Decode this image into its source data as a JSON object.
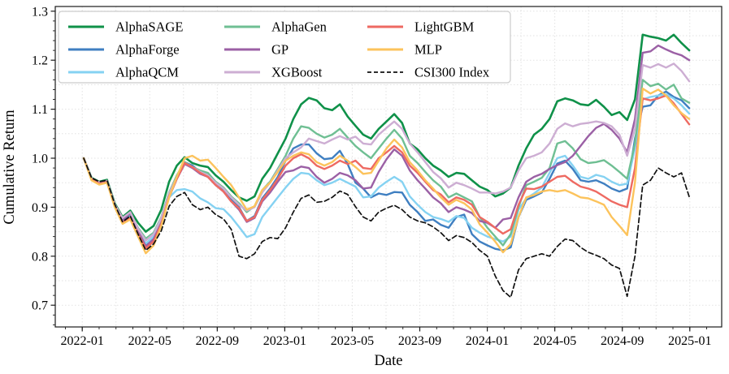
{
  "figure": {
    "xlabel": "Date",
    "ylabel": "Cumulative Return",
    "background_color": "#ffffff",
    "grid_color": "#e2e2e2",
    "spine_color": "#1a1a1a"
  },
  "chart_data": {
    "type": "line",
    "title": "",
    "xlabel": "Date",
    "ylabel": "Cumulative Return",
    "grid": true,
    "legend_position": "upper left",
    "ylim": [
      0.656,
      1.31
    ],
    "y_ticks": [
      0.7,
      0.8,
      0.9,
      1.0,
      1.1,
      1.2,
      1.3
    ],
    "y_tick_labels": [
      "0.7",
      "0.8",
      "0.9",
      "1.0",
      "1.1",
      "1.2",
      "1.3"
    ],
    "y_minor_step": 0.02,
    "x_ticks": [
      {
        "label": "2022-01",
        "month": 0
      },
      {
        "label": "2022-05",
        "month": 4
      },
      {
        "label": "2022-09",
        "month": 8
      },
      {
        "label": "2023-01",
        "month": 12
      },
      {
        "label": "2023-05",
        "month": 16
      },
      {
        "label": "2023-09",
        "month": 20
      },
      {
        "label": "2024-01",
        "month": 24
      },
      {
        "label": "2024-05",
        "month": 28
      },
      {
        "label": "2024-09",
        "month": 32
      },
      {
        "label": "2025-01",
        "month": 36
      }
    ],
    "dates": [
      "2022-01-04",
      "2022-01-18",
      "2022-02-01",
      "2022-02-15",
      "2022-03-01",
      "2022-03-15",
      "2022-03-29",
      "2022-04-12",
      "2022-04-26",
      "2022-05-10",
      "2022-05-24",
      "2022-06-07",
      "2022-06-21",
      "2022-07-05",
      "2022-07-19",
      "2022-08-02",
      "2022-08-16",
      "2022-08-30",
      "2022-09-13",
      "2022-09-27",
      "2022-10-11",
      "2022-10-25",
      "2022-11-08",
      "2022-11-22",
      "2022-12-06",
      "2022-12-20",
      "2023-01-03",
      "2023-01-17",
      "2023-01-31",
      "2023-02-14",
      "2023-02-28",
      "2023-03-14",
      "2023-03-28",
      "2023-04-11",
      "2023-04-25",
      "2023-05-09",
      "2023-05-23",
      "2023-06-06",
      "2023-06-20",
      "2023-07-04",
      "2023-07-18",
      "2023-08-01",
      "2023-08-15",
      "2023-08-29",
      "2023-09-12",
      "2023-09-26",
      "2023-10-10",
      "2023-10-24",
      "2023-11-07",
      "2023-11-21",
      "2023-12-05",
      "2023-12-19",
      "2024-01-02",
      "2024-01-16",
      "2024-01-30",
      "2024-02-13",
      "2024-02-27",
      "2024-03-12",
      "2024-03-26",
      "2024-04-09",
      "2024-04-23",
      "2024-05-07",
      "2024-05-21",
      "2024-06-04",
      "2024-06-18",
      "2024-07-02",
      "2024-07-16",
      "2024-07-30",
      "2024-08-13",
      "2024-08-27",
      "2024-09-10",
      "2024-09-24",
      "2024-10-08",
      "2024-10-22",
      "2024-11-05",
      "2024-11-19",
      "2024-12-03",
      "2024-12-17",
      "2024-12-31"
    ],
    "series": [
      {
        "name": "AlphaSAGE",
        "color": "#0f9149",
        "dash": null,
        "width": 2.6,
        "values": [
          1.0,
          0.96,
          0.952,
          0.956,
          0.908,
          0.88,
          0.893,
          0.868,
          0.85,
          0.862,
          0.895,
          0.952,
          0.985,
          1.002,
          0.99,
          0.985,
          0.982,
          0.965,
          0.952,
          0.935,
          0.92,
          0.913,
          0.922,
          0.958,
          0.98,
          1.01,
          1.04,
          1.08,
          1.11,
          1.123,
          1.118,
          1.102,
          1.098,
          1.11,
          1.085,
          1.066,
          1.048,
          1.04,
          1.06,
          1.075,
          1.09,
          1.072,
          1.03,
          1.018,
          1.0,
          0.985,
          0.975,
          0.962,
          0.97,
          0.968,
          0.955,
          0.942,
          0.935,
          0.922,
          0.928,
          0.94,
          0.985,
          1.02,
          1.048,
          1.06,
          1.08,
          1.116,
          1.122,
          1.118,
          1.11,
          1.108,
          1.119,
          1.105,
          1.088,
          1.094,
          1.078,
          1.12,
          1.252,
          1.248,
          1.245,
          1.24,
          1.252,
          1.235,
          1.22
        ]
      },
      {
        "name": "AlphaForge",
        "color": "#3f7fc1",
        "dash": null,
        "width": 2.4,
        "values": [
          1.0,
          0.958,
          0.95,
          0.953,
          0.904,
          0.872,
          0.882,
          0.85,
          0.822,
          0.835,
          0.87,
          0.925,
          0.96,
          0.992,
          0.985,
          0.972,
          0.965,
          0.948,
          0.935,
          0.915,
          0.9,
          0.872,
          0.882,
          0.918,
          0.938,
          0.962,
          0.995,
          1.02,
          1.028,
          1.028,
          1.01,
          0.998,
          1.0,
          1.015,
          0.988,
          0.95,
          0.938,
          0.92,
          0.928,
          0.925,
          0.931,
          0.93,
          0.905,
          0.89,
          0.872,
          0.875,
          0.864,
          0.858,
          0.88,
          0.885,
          0.845,
          0.83,
          0.822,
          0.815,
          0.812,
          0.818,
          0.88,
          0.915,
          0.922,
          0.93,
          0.958,
          0.989,
          0.995,
          0.978,
          0.955,
          0.952,
          0.955,
          0.948,
          0.938,
          0.932,
          0.938,
          1.04,
          1.105,
          1.108,
          1.128,
          1.136,
          1.125,
          1.118,
          1.102
        ]
      },
      {
        "name": "AlphaQCM",
        "color": "#85d2f2",
        "dash": null,
        "width": 2.4,
        "values": [
          1.0,
          0.957,
          0.948,
          0.952,
          0.902,
          0.87,
          0.88,
          0.848,
          0.826,
          0.84,
          0.872,
          0.92,
          0.935,
          0.937,
          0.932,
          0.918,
          0.91,
          0.898,
          0.896,
          0.88,
          0.86,
          0.839,
          0.845,
          0.88,
          0.9,
          0.92,
          0.94,
          0.958,
          0.97,
          0.968,
          0.955,
          0.945,
          0.95,
          0.958,
          0.95,
          0.942,
          0.92,
          0.922,
          0.94,
          0.952,
          0.962,
          0.952,
          0.922,
          0.905,
          0.89,
          0.88,
          0.876,
          0.87,
          0.882,
          0.878,
          0.858,
          0.848,
          0.84,
          0.835,
          0.83,
          0.84,
          0.895,
          0.918,
          0.928,
          0.94,
          0.97,
          1.0,
          1.005,
          0.985,
          0.962,
          0.958,
          0.966,
          0.962,
          0.952,
          0.945,
          0.948,
          1.02,
          1.12,
          1.125,
          1.128,
          1.13,
          1.122,
          1.108,
          1.091
        ]
      },
      {
        "name": "AlphaGen",
        "color": "#6fbf93",
        "dash": null,
        "width": 2.4,
        "values": [
          1.0,
          0.958,
          0.95,
          0.953,
          0.905,
          0.876,
          0.886,
          0.858,
          0.836,
          0.848,
          0.88,
          0.93,
          0.965,
          0.992,
          0.982,
          0.975,
          0.97,
          0.952,
          0.94,
          0.922,
          0.908,
          0.89,
          0.902,
          0.935,
          0.952,
          0.978,
          1.005,
          1.04,
          1.065,
          1.062,
          1.05,
          1.042,
          1.048,
          1.06,
          1.042,
          1.025,
          1.012,
          1.0,
          1.02,
          1.04,
          1.058,
          1.04,
          1.005,
          0.99,
          0.972,
          0.955,
          0.942,
          0.92,
          0.928,
          0.92,
          0.912,
          0.88,
          0.858,
          0.84,
          0.822,
          0.845,
          0.9,
          0.945,
          0.952,
          0.96,
          0.98,
          1.03,
          1.035,
          1.02,
          0.998,
          0.99,
          0.992,
          0.996,
          0.985,
          0.972,
          0.958,
          1.03,
          1.16,
          1.147,
          1.152,
          1.14,
          1.15,
          1.122,
          1.113
        ]
      },
      {
        "name": "GP",
        "color": "#9b60a5",
        "dash": null,
        "width": 2.4,
        "values": [
          1.0,
          0.958,
          0.949,
          0.952,
          0.903,
          0.874,
          0.888,
          0.852,
          0.82,
          0.835,
          0.868,
          0.92,
          0.958,
          0.988,
          0.98,
          0.968,
          0.962,
          0.945,
          0.932,
          0.912,
          0.895,
          0.87,
          0.878,
          0.912,
          0.93,
          0.952,
          0.972,
          0.975,
          0.983,
          0.98,
          0.962,
          0.95,
          0.958,
          0.97,
          0.965,
          0.955,
          0.938,
          0.94,
          0.972,
          0.998,
          1.018,
          1.005,
          0.975,
          0.955,
          0.938,
          0.92,
          0.908,
          0.89,
          0.9,
          0.895,
          0.888,
          0.872,
          0.868,
          0.858,
          0.875,
          0.878,
          0.92,
          0.952,
          0.962,
          0.968,
          0.978,
          0.986,
          0.992,
          1.005,
          1.025,
          1.045,
          1.062,
          1.07,
          1.058,
          1.04,
          1.012,
          1.08,
          1.215,
          1.218,
          1.23,
          1.222,
          1.215,
          1.21,
          1.2
        ]
      },
      {
        "name": "XGBoost",
        "color": "#cdaed3",
        "dash": null,
        "width": 2.4,
        "values": [
          1.0,
          0.959,
          0.951,
          0.954,
          0.906,
          0.878,
          0.89,
          0.856,
          0.832,
          0.845,
          0.878,
          0.928,
          0.962,
          0.99,
          0.982,
          0.972,
          0.965,
          0.95,
          0.938,
          0.92,
          0.905,
          0.893,
          0.9,
          0.93,
          0.95,
          0.975,
          1.0,
          1.012,
          1.022,
          1.04,
          1.035,
          1.03,
          1.038,
          1.045,
          1.038,
          1.044,
          1.03,
          1.028,
          1.048,
          1.062,
          1.075,
          1.06,
          1.03,
          1.012,
          0.992,
          0.972,
          0.959,
          0.94,
          0.95,
          0.945,
          0.938,
          0.93,
          0.93,
          0.928,
          0.932,
          0.94,
          0.975,
          1.0,
          1.005,
          1.012,
          1.03,
          1.06,
          1.071,
          1.065,
          1.07,
          1.072,
          1.075,
          1.072,
          1.065,
          1.048,
          1.005,
          1.06,
          1.19,
          1.185,
          1.192,
          1.185,
          1.193,
          1.178,
          1.157
        ]
      },
      {
        "name": "LightGBM",
        "color": "#ee6a62",
        "dash": null,
        "width": 2.4,
        "values": [
          1.0,
          0.957,
          0.948,
          0.951,
          0.902,
          0.869,
          0.878,
          0.845,
          0.816,
          0.83,
          0.866,
          0.922,
          0.958,
          0.99,
          0.982,
          0.97,
          0.962,
          0.945,
          0.932,
          0.912,
          0.898,
          0.872,
          0.88,
          0.915,
          0.935,
          0.958,
          0.985,
          1.0,
          1.008,
          1.0,
          0.985,
          0.978,
          0.985,
          0.995,
          0.988,
          0.995,
          0.98,
          0.978,
          1.0,
          1.012,
          1.025,
          1.012,
          0.985,
          0.97,
          0.952,
          0.935,
          0.926,
          0.91,
          0.92,
          0.915,
          0.905,
          0.88,
          0.87,
          0.858,
          0.846,
          0.855,
          0.905,
          0.938,
          0.937,
          0.942,
          0.952,
          0.962,
          0.964,
          0.952,
          0.942,
          0.938,
          0.932,
          0.922,
          0.912,
          0.905,
          0.9,
          0.98,
          1.122,
          1.118,
          1.122,
          1.128,
          1.112,
          1.09,
          1.069
        ]
      },
      {
        "name": "MLP",
        "color": "#fcc35c",
        "dash": null,
        "width": 2.4,
        "values": [
          1.0,
          0.955,
          0.946,
          0.95,
          0.9,
          0.866,
          0.875,
          0.84,
          0.806,
          0.822,
          0.862,
          0.92,
          0.962,
          1.0,
          1.005,
          0.995,
          0.997,
          0.98,
          0.962,
          0.945,
          0.92,
          0.895,
          0.902,
          0.935,
          0.95,
          0.972,
          0.995,
          1.005,
          1.012,
          1.008,
          0.992,
          0.985,
          0.992,
          1.005,
          0.995,
          0.982,
          0.968,
          0.97,
          0.995,
          1.02,
          1.038,
          1.022,
          0.992,
          0.975,
          0.955,
          0.938,
          0.92,
          0.905,
          0.915,
          0.908,
          0.895,
          0.865,
          0.848,
          0.83,
          0.808,
          0.825,
          0.88,
          0.92,
          0.925,
          0.932,
          0.935,
          0.932,
          0.935,
          0.928,
          0.92,
          0.918,
          0.912,
          0.905,
          0.88,
          0.862,
          0.843,
          0.95,
          1.142,
          1.132,
          1.14,
          1.128,
          1.108,
          1.092,
          1.08
        ]
      },
      {
        "name": "CSI300 Index",
        "color": "#111111",
        "dash": "6,3.5",
        "width": 1.7,
        "values": [
          1.0,
          0.96,
          0.952,
          0.955,
          0.906,
          0.87,
          0.882,
          0.845,
          0.812,
          0.825,
          0.852,
          0.902,
          0.922,
          0.93,
          0.905,
          0.895,
          0.9,
          0.885,
          0.876,
          0.855,
          0.8,
          0.795,
          0.805,
          0.83,
          0.838,
          0.836,
          0.858,
          0.89,
          0.918,
          0.925,
          0.91,
          0.912,
          0.92,
          0.933,
          0.926,
          0.901,
          0.88,
          0.872,
          0.89,
          0.898,
          0.904,
          0.895,
          0.88,
          0.872,
          0.868,
          0.86,
          0.848,
          0.832,
          0.842,
          0.838,
          0.828,
          0.812,
          0.8,
          0.76,
          0.73,
          0.716,
          0.772,
          0.795,
          0.8,
          0.805,
          0.8,
          0.82,
          0.835,
          0.832,
          0.818,
          0.808,
          0.802,
          0.795,
          0.782,
          0.775,
          0.718,
          0.8,
          0.945,
          0.955,
          0.98,
          0.97,
          0.962,
          0.97,
          0.921
        ]
      }
    ]
  }
}
